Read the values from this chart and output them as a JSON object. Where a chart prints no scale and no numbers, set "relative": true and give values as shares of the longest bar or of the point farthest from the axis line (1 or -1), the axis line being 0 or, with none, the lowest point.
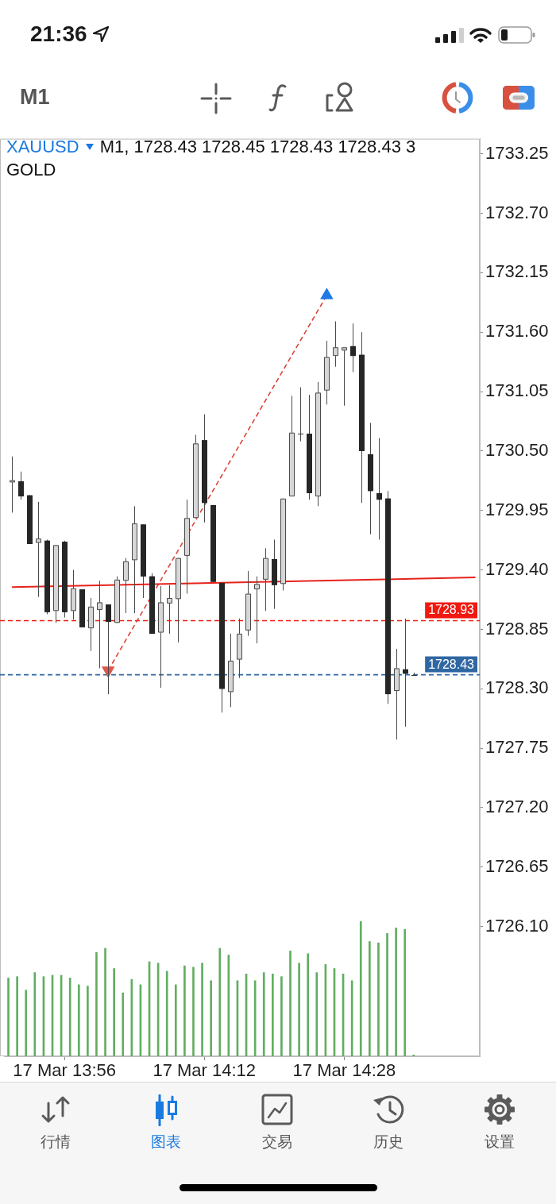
{
  "chart_data": [
    {
      "type": "candlestick",
      "title": "XAUUSD",
      "subtitle": "M1, 1728.43 1728.45 1728.43 1728.43 3",
      "annotations": [
        "GOLD",
        "21:36",
        "M1",
        "行情",
        "图表",
        "交易",
        "历史",
        "设置"
      ],
      "categories": [
        null,
        null,
        null,
        null,
        null,
        null,
        "17 Mar 13:56",
        null,
        null,
        null,
        null,
        null,
        null,
        null,
        null,
        null,
        null,
        null,
        null,
        null,
        null,
        null,
        "17 Mar 14:12",
        null,
        null,
        null,
        null,
        null,
        null,
        null,
        null,
        null,
        null,
        null,
        null,
        null,
        null,
        null,
        "17 Mar 14:28",
        null,
        null,
        null,
        null,
        null,
        null,
        null,
        null,
        null,
        null,
        null,
        null,
        null,
        null,
        null
      ],
      "ohlc": [
        [
          1730.21,
          1730.45,
          1729.93,
          1730.23
        ],
        [
          1730.22,
          1730.31,
          1730.05,
          1730.08
        ],
        [
          1730.09,
          1730.09,
          1729.64,
          1729.64
        ],
        [
          1729.65,
          1730.03,
          1729.15,
          1729.69
        ],
        [
          1729.67,
          1729.68,
          1728.99,
          1729.01
        ],
        [
          1729.02,
          1729.63,
          1728.91,
          1729.63
        ],
        [
          1729.66,
          1729.67,
          1728.96,
          1729.01
        ],
        [
          1729.02,
          1729.4,
          1728.94,
          1729.23
        ],
        [
          1729.22,
          1729.22,
          1728.87,
          1728.87
        ],
        [
          1728.86,
          1729.14,
          1728.65,
          1729.06
        ],
        [
          1729.03,
          1729.3,
          1728.49,
          1729.1
        ],
        [
          1729.08,
          1729.08,
          1728.25,
          1728.92
        ],
        [
          1728.91,
          1729.34,
          1728.91,
          1729.31
        ],
        [
          1729.3,
          1729.51,
          1729.0,
          1729.48
        ],
        [
          1729.49,
          1729.99,
          1729.0,
          1729.83
        ],
        [
          1729.82,
          1729.82,
          1729.14,
          1729.34
        ],
        [
          1729.34,
          1729.37,
          1728.81,
          1728.81
        ],
        [
          1728.82,
          1729.25,
          1728.31,
          1729.1
        ],
        [
          1729.09,
          1729.26,
          1728.81,
          1729.14
        ],
        [
          1729.13,
          1729.51,
          1728.73,
          1729.51
        ],
        [
          1729.53,
          1730.05,
          1729.18,
          1729.88
        ],
        [
          1729.88,
          1730.65,
          1729.88,
          1730.57
        ],
        [
          1730.6,
          1730.84,
          1729.84,
          1730.02
        ],
        [
          1730.0,
          1730.0,
          1729.29,
          1729.29
        ],
        [
          1729.28,
          1729.28,
          1728.08,
          1728.3
        ],
        [
          1728.27,
          1728.81,
          1728.13,
          1728.56
        ],
        [
          1728.57,
          1728.95,
          1728.4,
          1728.81
        ],
        [
          1728.84,
          1729.39,
          1728.79,
          1729.18
        ],
        [
          1729.22,
          1729.34,
          1728.72,
          1729.27
        ],
        [
          1729.31,
          1729.6,
          1729.02,
          1729.51
        ],
        [
          1729.5,
          1729.68,
          1729.04,
          1729.26
        ],
        [
          1729.27,
          1730.06,
          1729.21,
          1730.06
        ],
        [
          1730.08,
          1731.01,
          1730.08,
          1730.67
        ],
        [
          1730.66,
          1731.09,
          1730.59,
          1730.66
        ],
        [
          1730.66,
          1731.02,
          1730.05,
          1730.11
        ],
        [
          1730.08,
          1731.14,
          1729.99,
          1731.04
        ],
        [
          1731.06,
          1731.52,
          1730.93,
          1731.37
        ],
        [
          1731.38,
          1731.7,
          1731.28,
          1731.46
        ],
        [
          1731.43,
          1731.46,
          1730.92,
          1731.46
        ],
        [
          1731.47,
          1731.68,
          1731.23,
          1731.38
        ],
        [
          1731.39,
          1731.6,
          1730.02,
          1730.5
        ],
        [
          1730.47,
          1730.76,
          1729.73,
          1730.13
        ],
        [
          1730.11,
          1730.62,
          1729.68,
          1730.05
        ],
        [
          1730.06,
          1730.13,
          1728.16,
          1728.25
        ],
        [
          1728.28,
          1728.67,
          1727.83,
          1728.49
        ],
        [
          1728.48,
          1728.95,
          1727.95,
          1728.44
        ],
        [
          1728.43,
          1728.45,
          1728.43,
          1728.43
        ],
        null,
        null,
        null,
        null,
        null,
        null,
        null
      ],
      "ylim": [
        1724.9,
        1733.39
      ],
      "yticks": [
        1733.25,
        {
          "value": 1732.7,
          "label": "1732.70"
        },
        1732.15,
        {
          "value": 1731.6,
          "label": "1731.60"
        },
        1731.05,
        {
          "value": 1730.5,
          "label": "1730.50"
        },
        1729.95,
        {
          "value": 1729.4,
          "label": "1729.40"
        },
        1728.85,
        {
          "value": 1728.3,
          "label": "1728.30"
        },
        1727.75,
        {
          "value": 1727.2,
          "label": "1727.20"
        },
        1726.65,
        {
          "value": 1726.1,
          "label": "1726.10"
        }
      ],
      "ref_lines": [
        {
          "axis": "y",
          "value": 1728.93,
          "label": "1728.93",
          "color": "#f0190f",
          "line_style": "dashed"
        },
        {
          "axis": "y",
          "value": 1728.43,
          "label": "1728.43",
          "color": "#2f67a3",
          "line_style": "dashed"
        }
      ],
      "series": [
        {
          "type": "line",
          "color": "#e5231b",
          "values": [
            1729.24,
            null,
            null,
            null,
            null,
            null,
            null,
            null,
            null,
            null,
            null,
            null,
            null,
            null,
            null,
            null,
            null,
            null,
            null,
            null,
            null,
            null,
            null,
            null,
            null,
            null,
            null,
            null,
            null,
            null,
            null,
            null,
            null,
            null,
            null,
            null,
            null,
            null,
            null,
            null,
            null,
            null,
            null,
            null,
            null,
            null,
            null,
            null,
            null,
            null,
            null,
            null,
            null,
            1729.33
          ]
        },
        {
          "type": "line",
          "color": "#d8453b",
          "line_style": "dashed",
          "marker": "triangle",
          "colors": [
            null,
            null,
            null,
            null,
            null,
            null,
            null,
            null,
            null,
            null,
            null,
            "#e0564b",
            null,
            null,
            null,
            null,
            null,
            null,
            null,
            null,
            null,
            null,
            null,
            null,
            null,
            null,
            null,
            null,
            null,
            null,
            null,
            null,
            null,
            null,
            null,
            null,
            "#1f7be6",
            null,
            null,
            null,
            null,
            null,
            null,
            null,
            null,
            null,
            null,
            null,
            null,
            null,
            null,
            null,
            null,
            null
          ],
          "values": [
            null,
            null,
            null,
            null,
            null,
            null,
            null,
            null,
            null,
            null,
            null,
            1728.47,
            null,
            null,
            null,
            null,
            null,
            null,
            null,
            null,
            null,
            null,
            null,
            null,
            null,
            null,
            null,
            null,
            null,
            null,
            null,
            null,
            null,
            null,
            null,
            null,
            1731.94,
            null,
            null,
            null,
            null,
            null,
            null,
            null,
            null,
            null,
            null,
            null,
            null,
            null,
            null,
            null,
            null,
            null
          ]
        }
      ]
    },
    {
      "type": "bar",
      "relative": true,
      "tick_labels": false,
      "color": "#62ad62",
      "categories": [
        null,
        null,
        null,
        null,
        null,
        null,
        null,
        null,
        null,
        null,
        null,
        null,
        null,
        null,
        null,
        null,
        null,
        null,
        null,
        null,
        null,
        null,
        null,
        null,
        null,
        null,
        null,
        null,
        null,
        null,
        null,
        null,
        null,
        null,
        null,
        null,
        null,
        null,
        null,
        null,
        null,
        null,
        null,
        null,
        null,
        null,
        null,
        null,
        null,
        null,
        null,
        null,
        null,
        null
      ],
      "values": [
        0.58,
        0.59,
        0.49,
        0.62,
        0.59,
        0.6,
        0.6,
        0.58,
        0.53,
        0.52,
        0.77,
        0.8,
        0.65,
        0.47,
        0.57,
        0.53,
        0.7,
        0.69,
        0.63,
        0.53,
        0.67,
        0.66,
        0.69,
        0.56,
        0.8,
        0.75,
        0.56,
        0.61,
        0.56,
        0.62,
        0.61,
        0.59,
        0.78,
        0.69,
        0.76,
        0.62,
        0.68,
        0.65,
        0.61,
        0.56,
        1,
        0.85,
        0.84,
        0.91,
        0.95,
        0.94,
        0.01,
        null,
        null,
        null,
        null,
        null,
        null,
        null
      ]
    }
  ]
}
